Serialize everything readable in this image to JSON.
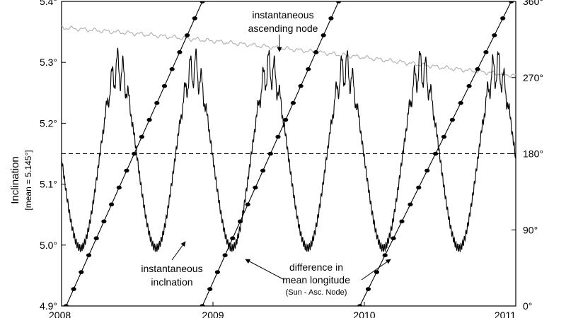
{
  "chart_data": {
    "type": "line",
    "title": "",
    "xlabel": "",
    "x_ticks": [
      "2008",
      "2009",
      "2010",
      "2011"
    ],
    "x_range": [
      2008,
      2011
    ],
    "ylabel": "Inclination",
    "ylabel_sub": "[mean = 5.145°]",
    "ylim": [
      4.9,
      5.4
    ],
    "y_ticks": [
      "4.9°",
      "5.0°",
      "5.1°",
      "5.2°",
      "5.3°",
      "5.4°"
    ],
    "y2lim": [
      0,
      360
    ],
    "y2_ticks": [
      "0°",
      "90°",
      "180°",
      "270°",
      "360°"
    ],
    "mean_line": 5.15,
    "grid": false,
    "series": [
      {
        "key": "inclination",
        "color": "#000000",
        "axis": "left",
        "annotation": [
          "instantaneous",
          "inclnation"
        ],
        "period_years": 0.5,
        "min_phase": 0.25,
        "mean": 5.145,
        "min": 4.995,
        "max": 5.29
      },
      {
        "key": "ascending_node",
        "color": "#b4b4b4",
        "axis": "left",
        "annotation": [
          "instantaneous",
          "ascending node"
        ],
        "x": [
          2008.0,
          2008.5,
          2009.0,
          2009.5,
          2010.0,
          2010.5,
          2011.0
        ],
        "values": [
          5.357,
          5.347,
          5.335,
          5.322,
          5.308,
          5.292,
          5.278
        ]
      },
      {
        "key": "mean_longitude_difference",
        "color": "#000000",
        "axis": "right",
        "annotation": [
          "difference in",
          "mean longitude",
          "(Sun - Asc. Node)"
        ],
        "markers": "filled-ellipse",
        "period_years": 0.9,
        "x_at_zero": [
          2008.03,
          2008.93,
          2009.97
        ],
        "x_at_360": [
          2008.93,
          2009.83,
          2010.97
        ],
        "marker_step_degrees": 20
      }
    ]
  }
}
